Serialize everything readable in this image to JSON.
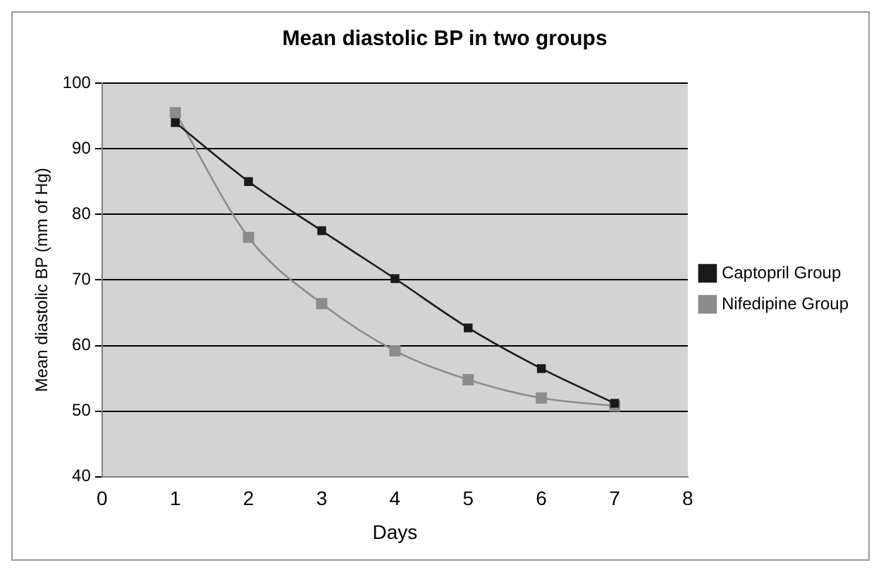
{
  "chart_data": {
    "type": "line",
    "title": "Mean diastolic BP in two groups",
    "xlabel": "Days",
    "ylabel": "Mean diastolic BP (mm of Hg)",
    "x": [
      1,
      2,
      3,
      4,
      5,
      6,
      7
    ],
    "series": [
      {
        "name": "Captopril Group",
        "color": "#1a1a1a",
        "values": [
          94,
          85,
          77.5,
          70.2,
          62.7,
          56.5,
          51.2
        ]
      },
      {
        "name": "Nifedipine Group",
        "color": "#8c8c8c",
        "values": [
          95.5,
          76.5,
          66.4,
          59.2,
          54.8,
          52,
          50.8
        ]
      }
    ],
    "xlim": [
      0,
      8
    ],
    "xticks": [
      0,
      1,
      2,
      3,
      4,
      5,
      6,
      7,
      8
    ],
    "ylim": [
      40,
      100
    ],
    "yticks": [
      40,
      50,
      60,
      70,
      80,
      90,
      100
    ],
    "grid": "y",
    "legend": "right",
    "marker": "square",
    "line_style": "solid"
  }
}
